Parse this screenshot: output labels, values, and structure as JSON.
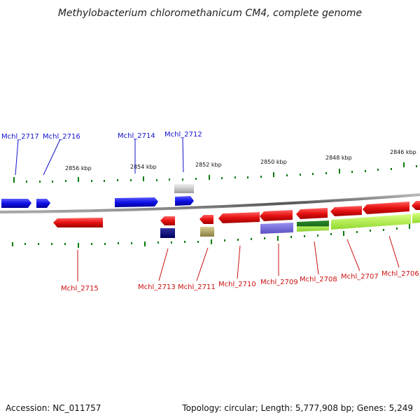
{
  "title": "Methylobacterium chloromethanicum CM4, complete genome",
  "footer": {
    "accession": "Accession: NC_011757",
    "topology": "Topology: circular; Length: 5,777,908 bp; Genes: 5,249"
  },
  "colors": {
    "forward_gene": "#1010e6",
    "reverse_gene": "#e61010",
    "forward_label": "#1010cc",
    "reverse_label": "#cc1010",
    "tick": "#0a7a0a",
    "backbone": "#888888"
  },
  "scale_labels": [
    "2856 kbp",
    "2854 kbp",
    "2852 kbp",
    "2850 kbp",
    "2848 kbp",
    "2846 kbp"
  ],
  "forward_labels": [
    "Mchl_2717",
    "Mchl_2716",
    "Mchl_2714",
    "Mchl_2712"
  ],
  "reverse_labels": [
    "Mchl_2715",
    "Mchl_2713",
    "Mchl_2711",
    "Mchl_2710",
    "Mchl_2709",
    "Mchl_2708",
    "Mchl_2707",
    "Mchl_2706"
  ]
}
